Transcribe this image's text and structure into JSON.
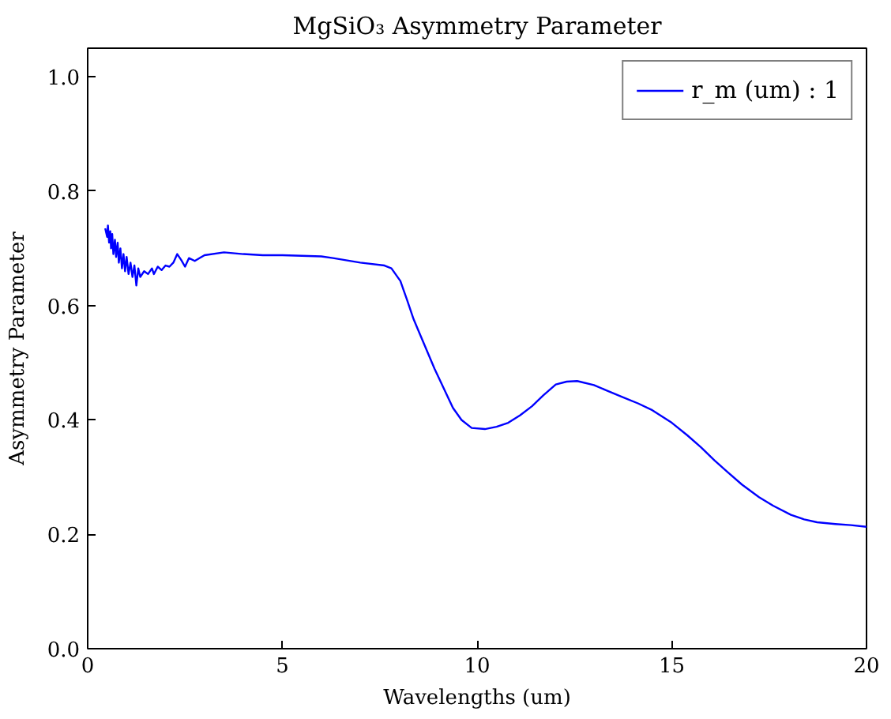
{
  "chart_data": {
    "type": "line",
    "title": "MgSiO₃ Asymmetry Parameter",
    "xlabel": "Wavelengths (um)",
    "ylabel": "Asymmetry Parameter",
    "xlim": [
      0,
      20
    ],
    "ylim": [
      0,
      1.05
    ],
    "xticks": [
      0,
      5,
      10,
      15,
      20
    ],
    "yticks": [
      {
        "value": 0,
        "label": "0.0"
      },
      {
        "value": 0.2,
        "label": "0.2"
      },
      {
        "value": 0.4,
        "label": "0.4"
      },
      {
        "value": 0.6,
        "label": "0.6"
      },
      {
        "value": 0.8,
        "label": "0.8"
      },
      {
        "value": 1,
        "label": "1.0"
      }
    ],
    "legend": "top right",
    "line_style": "solid",
    "series": [
      {
        "name": "r_m (um) : 1",
        "color": "#0000ff",
        "x": [
          0.45,
          0.5,
          0.52,
          0.55,
          0.58,
          0.6,
          0.63,
          0.66,
          0.7,
          0.73,
          0.77,
          0.8,
          0.84,
          0.88,
          0.92,
          0.96,
          1.0,
          1.05,
          1.1,
          1.15,
          1.2,
          1.25,
          1.3,
          1.35,
          1.45,
          1.55,
          1.65,
          1.7,
          1.8,
          1.9,
          2.0,
          2.1,
          2.2,
          2.3,
          2.4,
          2.5,
          2.6,
          2.75,
          3.0,
          3.5,
          4.0,
          4.5,
          5.0,
          5.5,
          6.0,
          6.3,
          7.0,
          7.62,
          7.8,
          8.03,
          8.2,
          8.37,
          8.5,
          8.91,
          9.38,
          9.6,
          9.86,
          10.2,
          10.5,
          10.8,
          11.1,
          11.41,
          11.7,
          12.02,
          12.3,
          12.57,
          13.0,
          13.31,
          13.7,
          14.13,
          14.5,
          15.0,
          15.4,
          15.75,
          16.1,
          16.43,
          16.8,
          17.24,
          17.6,
          18.06,
          18.4,
          18.73,
          19.2,
          19.6,
          20.0
        ],
        "values": [
          0.735,
          0.72,
          0.74,
          0.71,
          0.73,
          0.7,
          0.725,
          0.69,
          0.715,
          0.685,
          0.71,
          0.675,
          0.7,
          0.665,
          0.69,
          0.66,
          0.685,
          0.655,
          0.675,
          0.65,
          0.67,
          0.635,
          0.665,
          0.65,
          0.66,
          0.655,
          0.665,
          0.655,
          0.668,
          0.662,
          0.67,
          0.668,
          0.675,
          0.69,
          0.68,
          0.668,
          0.683,
          0.678,
          0.688,
          0.693,
          0.69,
          0.688,
          0.688,
          0.687,
          0.686,
          0.683,
          0.675,
          0.67,
          0.665,
          0.643,
          0.61,
          0.576,
          0.555,
          0.489,
          0.421,
          0.4,
          0.386,
          0.384,
          0.388,
          0.395,
          0.408,
          0.424,
          0.443,
          0.462,
          0.467,
          0.468,
          0.461,
          0.452,
          0.441,
          0.429,
          0.417,
          0.395,
          0.373,
          0.352,
          0.329,
          0.309,
          0.287,
          0.265,
          0.25,
          0.234,
          0.226,
          0.221,
          0.218,
          0.216,
          0.213
        ]
      }
    ]
  }
}
